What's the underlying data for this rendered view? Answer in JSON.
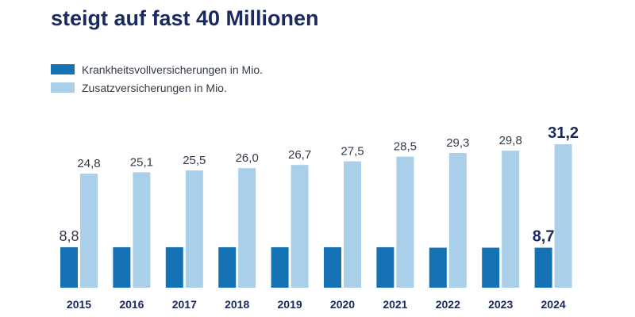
{
  "title_lines": {
    "top_partial": "",
    "main": "steigt auf fast 40 Millionen"
  },
  "legend": [
    {
      "label": "Krankheitsvollversicherungen in Mio.",
      "color": "#1472b5"
    },
    {
      "label": "Zusatzversicherungen in Mio.",
      "color": "#a9cfe9"
    }
  ],
  "chart_data": {
    "type": "bar",
    "categories": [
      "2015",
      "2016",
      "2017",
      "2018",
      "2019",
      "2020",
      "2021",
      "2022",
      "2023",
      "2024"
    ],
    "series": [
      {
        "name": "Krankheitsvollversicherungen in Mio.",
        "color": "#1472b5",
        "values": [
          8.8,
          8.8,
          8.8,
          8.8,
          8.8,
          8.8,
          8.8,
          8.7,
          8.7,
          8.7
        ],
        "labels": [
          "8,8",
          "",
          "",
          "",
          "",
          "",
          "",
          "",
          "",
          "8,7"
        ]
      },
      {
        "name": "Zusatzversicherungen in Mio.",
        "color": "#a9cfe9",
        "values": [
          24.8,
          25.1,
          25.5,
          26.0,
          26.7,
          27.5,
          28.5,
          29.3,
          29.8,
          31.2
        ],
        "labels": [
          "24,8",
          "25,1",
          "25,5",
          "26,0",
          "26,7",
          "27,5",
          "28,5",
          "29,3",
          "29,8",
          "31,2"
        ]
      }
    ],
    "ylim": [
      0,
      40
    ],
    "grid": false,
    "legend_position": "top-left",
    "highlight_category": "2024"
  }
}
